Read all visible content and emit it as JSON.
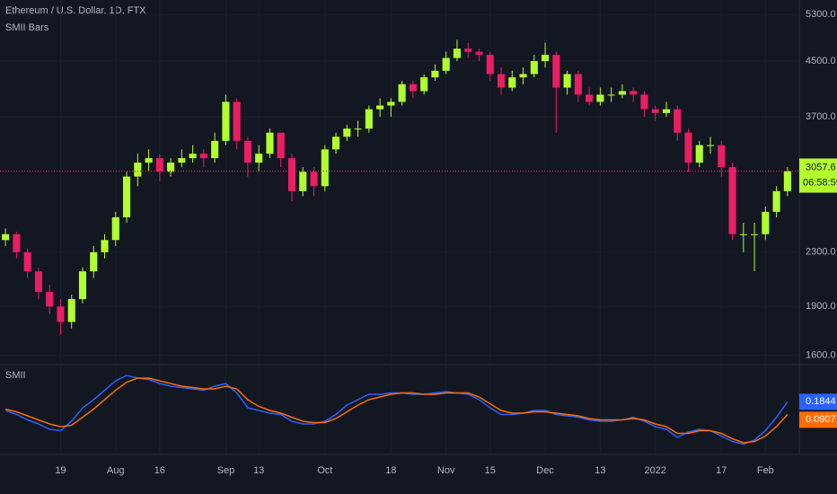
{
  "chart_data": {
    "type": "candlestick",
    "title": "Ethereum / U.S. Dollar, 1D, FTX",
    "subtitle": "SMII Bars",
    "categories": [
      null,
      null,
      null,
      null,
      null,
      "19",
      null,
      null,
      null,
      null,
      "Aug",
      null,
      null,
      null,
      "16",
      null,
      null,
      null,
      null,
      null,
      "Sep",
      null,
      null,
      "13",
      null,
      null,
      null,
      null,
      null,
      "Oct",
      null,
      null,
      null,
      null,
      null,
      "18",
      null,
      null,
      null,
      null,
      "Nov",
      null,
      null,
      null,
      "15",
      null,
      null,
      null,
      null,
      "Dec",
      null,
      null,
      null,
      null,
      "13",
      null,
      null,
      null,
      null,
      "2022",
      null,
      null,
      null,
      null,
      null,
      "17",
      null,
      null,
      null,
      "Feb",
      null,
      null
    ],
    "open": [
      2400,
      2450,
      2300,
      2150,
      2000,
      1900,
      1800,
      1950,
      2150,
      2300,
      2400,
      2600,
      3000,
      3150,
      3200,
      3050,
      3150,
      3200,
      3250,
      3200,
      3400,
      3900,
      3400,
      3150,
      3250,
      3500,
      3200,
      2850,
      3050,
      2900,
      3300,
      3450,
      3550,
      3550,
      3800,
      3850,
      3900,
      4150,
      4050,
      4250,
      4350,
      4550,
      4700,
      4650,
      4600,
      4300,
      4100,
      4250,
      4300,
      4500,
      4600,
      4100,
      4300,
      4000,
      3900,
      4000,
      4000,
      4050,
      4000,
      3800,
      3750,
      3800,
      3500,
      3150,
      3350,
      3350,
      3100,
      2450,
      2450,
      2450,
      2650,
      2850
    ],
    "high": [
      2500,
      2470,
      2330,
      2180,
      2050,
      1950,
      1980,
      2180,
      2350,
      2450,
      2650,
      3050,
      3250,
      3300,
      3250,
      3200,
      3300,
      3350,
      3300,
      3500,
      4000,
      3950,
      3450,
      3350,
      3550,
      3500,
      3250,
      3100,
      3100,
      3350,
      3500,
      3600,
      3650,
      3850,
      3950,
      3950,
      4200,
      4200,
      4300,
      4450,
      4650,
      4850,
      4800,
      4700,
      4650,
      4400,
      4350,
      4400,
      4600,
      4800,
      4650,
      4350,
      4350,
      4100,
      4100,
      4100,
      4150,
      4100,
      4050,
      3850,
      3900,
      3850,
      3550,
      3400,
      3450,
      3400,
      3150,
      2550,
      2550,
      2700,
      2900,
      3100
    ],
    "low": [
      2350,
      2250,
      2100,
      1950,
      1850,
      1720,
      1760,
      1920,
      2100,
      2250,
      2350,
      2550,
      2900,
      3050,
      2950,
      3000,
      3100,
      3150,
      3100,
      3150,
      3350,
      3300,
      3000,
      3050,
      3200,
      3100,
      2750,
      2800,
      2800,
      2850,
      3250,
      3400,
      3450,
      3500,
      3700,
      3700,
      3850,
      3950,
      4000,
      4200,
      4300,
      4500,
      4550,
      4500,
      4200,
      4000,
      4050,
      4150,
      4250,
      4400,
      3500,
      4000,
      3900,
      3850,
      3850,
      3900,
      3950,
      3900,
      3700,
      3650,
      3700,
      3400,
      3050,
      3100,
      3250,
      3000,
      2400,
      2300,
      2150,
      2400,
      2600,
      2800
    ],
    "close": [
      2450,
      2300,
      2150,
      2000,
      1900,
      1800,
      1950,
      2150,
      2300,
      2400,
      2600,
      3000,
      3150,
      3200,
      3050,
      3150,
      3200,
      3250,
      3200,
      3400,
      3900,
      3400,
      3150,
      3250,
      3500,
      3200,
      2850,
      3050,
      2900,
      3300,
      3450,
      3550,
      3550,
      3800,
      3850,
      3900,
      4150,
      4050,
      4250,
      4350,
      4550,
      4700,
      4650,
      4600,
      4300,
      4100,
      4250,
      4300,
      4500,
      4600,
      4100,
      4300,
      4000,
      3900,
      4000,
      4000,
      4050,
      4000,
      3800,
      3750,
      3800,
      3500,
      3150,
      3350,
      3350,
      3100,
      2450,
      2450,
      2450,
      2650,
      2850,
      3057.6
    ],
    "up_color": "#b2ff2e",
    "down_color": "#e91e63",
    "log_scale": true,
    "ylim": [
      1554,
      5578
    ],
    "yticks": [
      {
        "value": 5300,
        "label": "5300.0"
      },
      {
        "value": 4500,
        "label": "4500.0"
      },
      {
        "value": 3700,
        "label": "3700.0"
      },
      {
        "value": 2300,
        "label": "2300.0"
      },
      {
        "value": 1900,
        "label": "1900.0"
      },
      {
        "value": 1600,
        "label": "1600.0"
      }
    ],
    "last_price_label": "3057.6",
    "countdown": "06:58:59",
    "grid": true,
    "indicator": {
      "type": "line",
      "title": "SMII",
      "ylim": [
        -0.2,
        0.42
      ],
      "series": [
        {
          "color": "#2962ff",
          "values": [
            0.12,
            0.09,
            0.05,
            0.02,
            -0.02,
            -0.03,
            0.04,
            0.14,
            0.2,
            0.27,
            0.34,
            0.38,
            0.36,
            0.35,
            0.32,
            0.3,
            0.29,
            0.28,
            0.27,
            0.3,
            0.32,
            0.25,
            0.14,
            0.12,
            0.1,
            0.09,
            0.04,
            0.02,
            0.02,
            0.04,
            0.09,
            0.16,
            0.2,
            0.24,
            0.24,
            0.25,
            0.25,
            0.24,
            0.24,
            0.25,
            0.26,
            0.25,
            0.24,
            0.2,
            0.14,
            0.09,
            0.09,
            0.1,
            0.12,
            0.12,
            0.09,
            0.08,
            0.07,
            0.05,
            0.04,
            0.04,
            0.05,
            0.07,
            0.04,
            0,
            -0.02,
            -0.08,
            -0.04,
            -0.02,
            -0.03,
            -0.07,
            -0.11,
            -0.13,
            -0.1,
            -0.03,
            0.07,
            0.1844
          ]
        },
        {
          "color": "#ff6d00",
          "values": [
            0.13,
            0.11,
            0.08,
            0.05,
            0.02,
            0,
            0.01,
            0.07,
            0.13,
            0.2,
            0.27,
            0.33,
            0.36,
            0.36,
            0.34,
            0.32,
            0.3,
            0.29,
            0.28,
            0.28,
            0.3,
            0.28,
            0.2,
            0.15,
            0.12,
            0.1,
            0.07,
            0.04,
            0.03,
            0.03,
            0.06,
            0.11,
            0.16,
            0.2,
            0.22,
            0.24,
            0.25,
            0.25,
            0.24,
            0.24,
            0.25,
            0.25,
            0.25,
            0.22,
            0.17,
            0.12,
            0.1,
            0.1,
            0.11,
            0.11,
            0.1,
            0.09,
            0.08,
            0.06,
            0.05,
            0.05,
            0.05,
            0.06,
            0.05,
            0.02,
            0,
            -0.05,
            -0.05,
            -0.03,
            -0.03,
            -0.05,
            -0.09,
            -0.12,
            -0.11,
            -0.07,
            0,
            0.0907
          ]
        }
      ]
    }
  }
}
